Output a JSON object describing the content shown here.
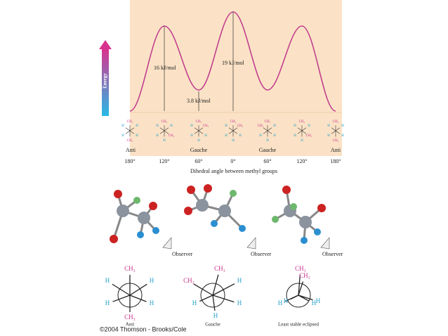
{
  "energy_diagram": {
    "axis_label": "Energy",
    "barriers": [
      "16 kJ/mol",
      "19 kJ/mol",
      "3.8 kJ/mol"
    ],
    "conformations": [
      "Anti",
      "Gauche",
      "Gauche",
      "Anti"
    ],
    "angles": [
      "180°",
      "120°",
      "60°",
      "0°",
      "60°",
      "120°",
      "180°"
    ],
    "x_title": "Dihedral angle between methyl groups",
    "small_structures": [
      [
        "CH₃",
        "H",
        "H",
        "H",
        "H",
        "CH₃"
      ],
      [
        "CH₃",
        "H",
        "H",
        "H",
        "CH₃",
        "H"
      ],
      [
        "CH₃",
        "H",
        "CH₃",
        "H",
        "H",
        "H"
      ],
      [
        "CH₃",
        "H",
        "CH₃",
        "H",
        "H",
        "H"
      ],
      [
        "CH₃",
        "CH₃",
        "H",
        "H",
        "H",
        "H"
      ],
      [
        "CH₃",
        "H",
        "H",
        "H",
        "CH₃",
        "H"
      ],
      [
        "CH₃",
        "H",
        "H",
        "H",
        "H",
        "CH₃"
      ]
    ]
  },
  "models": {
    "observer": [
      "Observer",
      "Observer",
      "Observer"
    ]
  },
  "newman": [
    {
      "name": "Anti",
      "labels": [
        "CH₃",
        "H",
        "H",
        "H",
        "H",
        "CH₃"
      ]
    },
    {
      "name": "Gauche",
      "labels": [
        "CH₃",
        "CH₃",
        "H",
        "H",
        "H",
        "H"
      ]
    },
    {
      "name": "Least stable eclipsed",
      "labels": [
        "CH₃",
        "CH₃",
        "H",
        "H",
        "H",
        "H"
      ]
    }
  ],
  "credit": "©2004 Thomson - Brooks/Cole"
}
